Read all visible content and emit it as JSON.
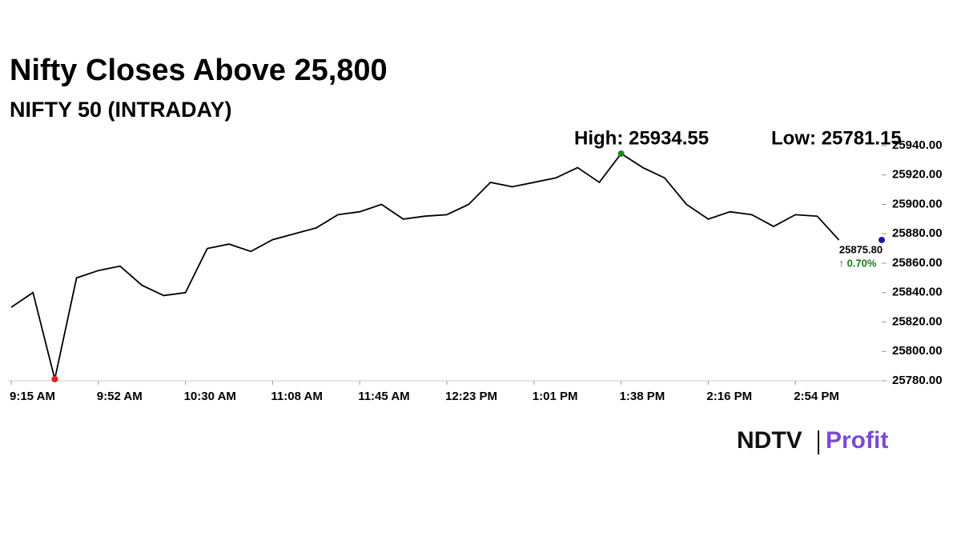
{
  "chart_data": {
    "type": "line",
    "title": "Nifty Closes Above 25,800",
    "subtitle": "NIFTY 50 (INTRADAY)",
    "high_label": "High: 25934.55",
    "low_label": "Low: 25781.15",
    "last_label": "25875.80",
    "change_label": "↑ 0.70%",
    "categories": [
      "9:15 AM",
      null,
      null,
      null,
      "9:52 AM",
      null,
      null,
      null,
      "10:30 AM",
      null,
      null,
      null,
      "11:08 AM",
      null,
      null,
      null,
      "11:45 AM",
      null,
      null,
      null,
      "12:23 PM",
      null,
      null,
      null,
      "1:01 PM",
      null,
      null,
      null,
      "1:38 PM",
      null,
      null,
      null,
      "2:16 PM",
      null,
      null,
      null,
      "2:54 PM",
      null,
      null
    ],
    "series": [
      {
        "name": "NIFTY 50",
        "color": "#000000",
        "values": [
          25830,
          25840,
          25781.15,
          25850,
          25855,
          25858,
          25845,
          25838,
          25840,
          25870,
          25873,
          25868,
          25876,
          25880,
          25884,
          25893,
          25895,
          25900,
          25890,
          25892,
          25893,
          25900,
          25915,
          25912,
          25915,
          25918,
          25925,
          25915,
          25934.55,
          25925,
          25918,
          25900,
          25890,
          25895,
          25893,
          25885,
          25893,
          25892,
          25875.8
        ]
      }
    ],
    "ylim": [
      25780,
      25940
    ],
    "yticks": [
      {
        "value": 25780,
        "label": "25780.00"
      },
      {
        "value": 25800,
        "label": "25800.00"
      },
      {
        "value": 25820,
        "label": "25820.00"
      },
      {
        "value": 25840,
        "label": "25840.00"
      },
      {
        "value": 25860,
        "label": "25860.00"
      },
      {
        "value": 25880,
        "label": "25880.00"
      },
      {
        "value": 25900,
        "label": "25900.00"
      },
      {
        "value": 25920,
        "label": "25920.00"
      },
      {
        "value": 25940,
        "label": "25940.00"
      }
    ],
    "high_color": "#1a8a1a",
    "low_color": "#e02020",
    "last_color": "#1a1aa0",
    "change_color": "#1a7a1a",
    "brand": [
      "NDTV",
      "Profit"
    ]
  }
}
